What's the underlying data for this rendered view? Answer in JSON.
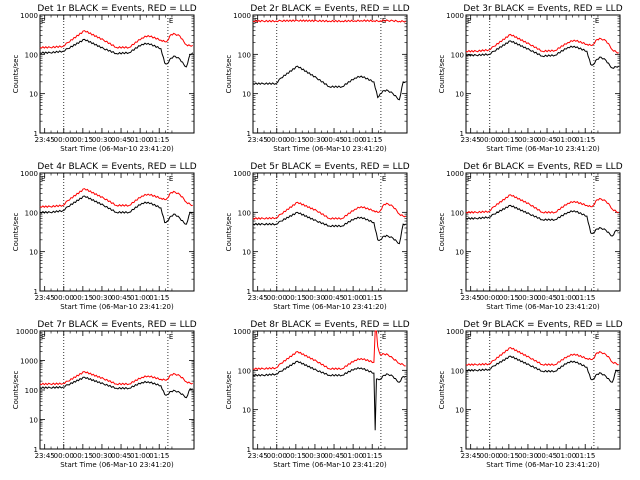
{
  "chart_data": [
    {
      "type": "line",
      "title": "Det 1r BLACK = Events, RED = LLD",
      "xlabel": "Start Time (06-Mar-10 23:41:20)",
      "ylabel": "Counts/sec",
      "yscale": "log",
      "ylim": [
        1,
        1000
      ],
      "ytick_labels": [
        "1",
        "10",
        "100",
        "1000"
      ],
      "x_tick_labels": [
        "23:45",
        "00:00",
        "00:15",
        "00:30",
        "00:45",
        "01:00",
        "01:15"
      ],
      "marker_label": "E",
      "series": [
        {
          "color": "#000000",
          "x_minutes": [
            0,
            8,
            18,
            22,
            35,
            50,
            60,
            70,
            80,
            85,
            95,
            98,
            100,
            103,
            106,
            110,
            113,
            115,
            118,
            120
          ],
          "values": [
            110,
            110,
            120,
            140,
            240,
            140,
            105,
            110,
            180,
            190,
            140,
            60,
            58,
            80,
            90,
            75,
            55,
            48,
            100,
            110
          ]
        },
        {
          "color": "#ff0000",
          "x_minutes": [
            0,
            8,
            18,
            22,
            35,
            50,
            60,
            70,
            80,
            85,
            95,
            98,
            100,
            103,
            106,
            110,
            113,
            115,
            118,
            120
          ],
          "values": [
            150,
            150,
            160,
            200,
            400,
            230,
            150,
            150,
            260,
            300,
            230,
            210,
            220,
            320,
            330,
            290,
            210,
            175,
            165,
            170
          ]
        }
      ]
    },
    {
      "type": "line",
      "title": "Det 2r BLACK = Events, RED = LLD",
      "xlabel": "Start Time (06-Mar-10 23:41:20)",
      "ylabel": "Counts/sec",
      "yscale": "log",
      "ylim": [
        1,
        1000
      ],
      "ytick_labels": [
        "1",
        "10",
        "100",
        "1000"
      ],
      "x_tick_labels": [
        "23:45",
        "00:00",
        "00:15",
        "00:30",
        "00:45",
        "01:00",
        "01:15"
      ],
      "marker_label": "E",
      "series": [
        {
          "color": "#000000",
          "x_minutes": [
            0,
            8,
            18,
            22,
            35,
            50,
            60,
            70,
            80,
            85,
            95,
            98,
            100,
            103,
            106,
            110,
            113,
            115,
            118,
            120
          ],
          "values": [
            18,
            18,
            18,
            25,
            50,
            25,
            15,
            15,
            25,
            28,
            20,
            8,
            10,
            12,
            12,
            10,
            8,
            7,
            20,
            20
          ]
        },
        {
          "color": "#ff0000",
          "x_minutes": [
            0,
            8,
            18,
            22,
            35,
            50,
            60,
            70,
            80,
            85,
            95,
            98,
            100,
            103,
            106,
            110,
            113,
            115,
            118,
            120
          ],
          "values": [
            700,
            700,
            700,
            710,
            720,
            710,
            700,
            700,
            710,
            720,
            710,
            700,
            710,
            720,
            720,
            710,
            700,
            690,
            690,
            690
          ]
        }
      ]
    },
    {
      "type": "line",
      "title": "Det 3r BLACK = Events, RED = LLD",
      "xlabel": "Start Time (06-Mar-10 23:41:20)",
      "ylabel": "Counts/sec",
      "yscale": "log",
      "ylim": [
        1,
        1000
      ],
      "ytick_labels": [
        "1",
        "10",
        "100",
        "1000"
      ],
      "x_tick_labels": [
        "23:45",
        "00:00",
        "00:15",
        "00:30",
        "00:45",
        "01:00",
        "01:15"
      ],
      "marker_label": "E",
      "series": [
        {
          "color": "#000000",
          "x_minutes": [
            0,
            8,
            18,
            22,
            35,
            50,
            60,
            70,
            80,
            85,
            95,
            98,
            100,
            103,
            106,
            110,
            113,
            115,
            118,
            120
          ],
          "values": [
            95,
            95,
            100,
            120,
            220,
            130,
            90,
            95,
            150,
            160,
            120,
            55,
            55,
            75,
            85,
            70,
            52,
            45,
            48,
            50
          ]
        },
        {
          "color": "#ff0000",
          "x_minutes": [
            0,
            8,
            18,
            22,
            35,
            50,
            60,
            70,
            80,
            85,
            95,
            98,
            100,
            103,
            106,
            110,
            113,
            115,
            118,
            120
          ],
          "values": [
            120,
            120,
            130,
            160,
            320,
            180,
            120,
            125,
            200,
            230,
            180,
            170,
            180,
            240,
            250,
            220,
            165,
            130,
            115,
            110
          ]
        }
      ]
    },
    {
      "type": "line",
      "title": "Det 4r BLACK = Events, RED = LLD",
      "xlabel": "Start Time (06-Mar-10 23:41:20)",
      "ylabel": "Counts/sec",
      "yscale": "log",
      "ylim": [
        1,
        1000
      ],
      "ytick_labels": [
        "1",
        "10",
        "100",
        "1000"
      ],
      "x_tick_labels": [
        "23:45",
        "00:00",
        "00:15",
        "00:30",
        "00:45",
        "01:00",
        "01:15"
      ],
      "marker_label": "E",
      "series": [
        {
          "color": "#000000",
          "x_minutes": [
            0,
            8,
            18,
            22,
            35,
            50,
            60,
            70,
            80,
            85,
            95,
            98,
            100,
            103,
            106,
            110,
            113,
            115,
            118,
            120
          ],
          "values": [
            100,
            100,
            110,
            140,
            260,
            150,
            100,
            100,
            170,
            180,
            130,
            55,
            60,
            80,
            90,
            70,
            55,
            50,
            100,
            100
          ]
        },
        {
          "color": "#ff0000",
          "x_minutes": [
            0,
            8,
            18,
            22,
            35,
            50,
            60,
            70,
            80,
            85,
            95,
            98,
            100,
            103,
            106,
            110,
            113,
            115,
            118,
            120
          ],
          "values": [
            140,
            140,
            150,
            200,
            400,
            230,
            150,
            150,
            260,
            290,
            230,
            210,
            230,
            320,
            330,
            280,
            220,
            180,
            160,
            150
          ]
        }
      ]
    },
    {
      "type": "line",
      "title": "Det 5r BLACK = Events, RED = LLD",
      "xlabel": "Start Time (06-Mar-10 23:41:20)",
      "ylabel": "Counts/sec",
      "yscale": "log",
      "ylim": [
        1,
        1000
      ],
      "ytick_labels": [
        "1",
        "10",
        "100",
        "1000"
      ],
      "x_tick_labels": [
        "23:45",
        "00:00",
        "00:15",
        "00:30",
        "00:45",
        "01:00",
        "01:15"
      ],
      "marker_label": "E",
      "series": [
        {
          "color": "#000000",
          "x_minutes": [
            0,
            8,
            18,
            22,
            35,
            50,
            60,
            70,
            80,
            85,
            95,
            98,
            100,
            103,
            106,
            110,
            113,
            115,
            118,
            120
          ],
          "values": [
            50,
            50,
            50,
            60,
            100,
            60,
            45,
            45,
            70,
            75,
            55,
            20,
            20,
            25,
            25,
            22,
            18,
            16,
            50,
            50
          ]
        },
        {
          "color": "#ff0000",
          "x_minutes": [
            0,
            8,
            18,
            22,
            35,
            50,
            60,
            70,
            80,
            85,
            95,
            98,
            100,
            103,
            106,
            110,
            113,
            115,
            118,
            120
          ],
          "values": [
            70,
            70,
            72,
            90,
            180,
            110,
            70,
            70,
            120,
            140,
            110,
            100,
            110,
            160,
            165,
            140,
            110,
            90,
            80,
            80
          ]
        }
      ]
    },
    {
      "type": "line",
      "title": "Det 6r BLACK = Events, RED = LLD",
      "xlabel": "Start Time (06-Mar-10 23:41:20)",
      "ylabel": "Counts/sec",
      "yscale": "log",
      "ylim": [
        1,
        1000
      ],
      "ytick_labels": [
        "1",
        "10",
        "100",
        "1000"
      ],
      "x_tick_labels": [
        "23:45",
        "00:00",
        "00:15",
        "00:30",
        "00:45",
        "01:00",
        "01:15"
      ],
      "marker_label": "E",
      "series": [
        {
          "color": "#000000",
          "x_minutes": [
            0,
            8,
            18,
            22,
            35,
            50,
            60,
            70,
            80,
            85,
            95,
            98,
            100,
            103,
            106,
            110,
            113,
            115,
            118,
            120
          ],
          "values": [
            70,
            70,
            75,
            90,
            150,
            90,
            65,
            65,
            100,
            110,
            80,
            30,
            30,
            38,
            40,
            35,
            28,
            25,
            35,
            35
          ]
        },
        {
          "color": "#ff0000",
          "x_minutes": [
            0,
            8,
            18,
            22,
            35,
            50,
            60,
            70,
            80,
            85,
            95,
            98,
            100,
            103,
            106,
            110,
            113,
            115,
            118,
            120
          ],
          "values": [
            100,
            100,
            105,
            140,
            280,
            160,
            100,
            100,
            170,
            190,
            150,
            140,
            150,
            210,
            220,
            190,
            150,
            120,
            105,
            100
          ]
        }
      ]
    },
    {
      "type": "line",
      "title": "Det 7r BLACK = Events, RED = LLD",
      "xlabel": "Start Time (06-Mar-10 23:41:20)",
      "ylabel": "Counts/sec",
      "yscale": "log",
      "ylim": [
        1,
        10000
      ],
      "ytick_labels": [
        "1",
        "10",
        "100",
        "1000",
        "10000"
      ],
      "x_tick_labels": [
        "23:45",
        "00:00",
        "00:15",
        "00:30",
        "00:45",
        "01:00",
        "01:15"
      ],
      "marker_label": "E",
      "series": [
        {
          "color": "#000000",
          "x_minutes": [
            0,
            8,
            18,
            22,
            35,
            50,
            60,
            70,
            80,
            85,
            95,
            98,
            100,
            103,
            106,
            110,
            113,
            115,
            118,
            120
          ],
          "values": [
            120,
            120,
            125,
            150,
            270,
            160,
            115,
            115,
            180,
            190,
            140,
            70,
            70,
            90,
            95,
            80,
            65,
            55,
            110,
            110
          ]
        },
        {
          "color": "#ff0000",
          "x_minutes": [
            0,
            8,
            18,
            22,
            35,
            50,
            60,
            70,
            80,
            85,
            95,
            98,
            100,
            103,
            106,
            110,
            113,
            115,
            118,
            120
          ],
          "values": [
            160,
            160,
            165,
            200,
            420,
            240,
            160,
            160,
            270,
            300,
            230,
            220,
            230,
            330,
            350,
            300,
            230,
            190,
            170,
            170
          ]
        }
      ]
    },
    {
      "type": "line",
      "title": "Det 8r BLACK = Events, RED = LLD",
      "xlabel": "Start Time (06-Mar-10 23:41:20)",
      "ylabel": "Counts/sec",
      "yscale": "log",
      "ylim": [
        1,
        1000
      ],
      "ytick_labels": [
        "1",
        "10",
        "100",
        "1000"
      ],
      "x_tick_labels": [
        "23:45",
        "00:00",
        "00:15",
        "00:30",
        "00:45",
        "01:00",
        "01:15"
      ],
      "marker_label": "E",
      "series": [
        {
          "color": "#000000",
          "x_minutes": [
            0,
            8,
            18,
            22,
            35,
            50,
            60,
            70,
            80,
            85,
            95,
            96,
            97,
            98,
            100,
            103,
            106,
            110,
            113,
            115,
            118,
            120
          ],
          "values": [
            75,
            75,
            80,
            95,
            170,
            100,
            75,
            75,
            110,
            115,
            85,
            3,
            60,
            60,
            60,
            75,
            80,
            70,
            55,
            50,
            70,
            70
          ]
        },
        {
          "color": "#ff0000",
          "x_minutes": [
            0,
            8,
            18,
            22,
            35,
            50,
            60,
            70,
            80,
            85,
            95,
            96,
            97,
            98,
            100,
            103,
            106,
            110,
            113,
            115,
            118,
            120
          ],
          "values": [
            110,
            110,
            115,
            150,
            300,
            170,
            110,
            110,
            180,
            200,
            160,
            1000,
            1000,
            400,
            250,
            260,
            250,
            200,
            170,
            150,
            140,
            130
          ]
        }
      ]
    },
    {
      "type": "line",
      "title": "Det 9r BLACK = Events, RED = LLD",
      "xlabel": "Start Time (06-Mar-10 23:41:20)",
      "ylabel": "Counts/sec",
      "yscale": "log",
      "ylim": [
        1,
        1000
      ],
      "ytick_labels": [
        "1",
        "10",
        "100",
        "1000"
      ],
      "x_tick_labels": [
        "23:45",
        "00:00",
        "00:15",
        "00:30",
        "00:45",
        "01:00",
        "01:15"
      ],
      "marker_label": "E",
      "series": [
        {
          "color": "#000000",
          "x_minutes": [
            0,
            8,
            18,
            22,
            35,
            50,
            60,
            70,
            80,
            85,
            95,
            98,
            100,
            103,
            106,
            110,
            113,
            115,
            118,
            120
          ],
          "values": [
            100,
            100,
            105,
            130,
            230,
            135,
            95,
            95,
            160,
            170,
            120,
            60,
            60,
            80,
            85,
            70,
            55,
            50,
            100,
            100
          ]
        },
        {
          "color": "#ff0000",
          "x_minutes": [
            0,
            8,
            18,
            22,
            35,
            50,
            60,
            70,
            80,
            85,
            95,
            98,
            100,
            103,
            106,
            110,
            113,
            115,
            118,
            120
          ],
          "values": [
            140,
            140,
            145,
            180,
            380,
            210,
            140,
            140,
            230,
            260,
            200,
            190,
            200,
            280,
            290,
            250,
            200,
            160,
            150,
            140
          ]
        }
      ]
    }
  ]
}
